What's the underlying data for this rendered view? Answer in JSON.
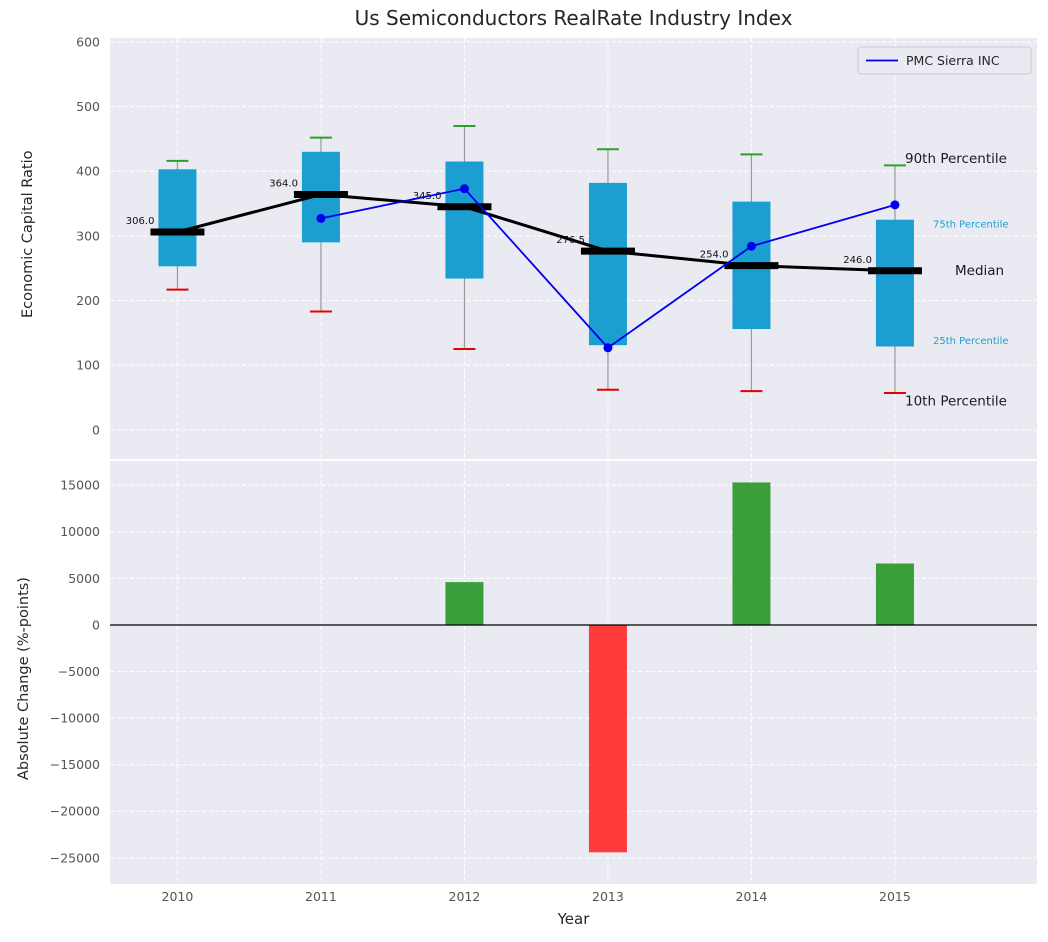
{
  "colors": {
    "axes_bg": "#eaeaf2",
    "grid": "#ffffff",
    "box_fill": "#1a9fd0",
    "median": "#000000",
    "whisker": "#999999",
    "cap_high": "#2ca02c",
    "cap_low": "#e60000",
    "series_line": "#0000ee",
    "bar_positive": "#3a9e3a",
    "bar_negative": "#ff3b3b",
    "tick_label": "#555555",
    "text": "#262626",
    "pct_small": "#1f9ecd"
  },
  "legend": {
    "items": [
      {
        "label": "PMC Sierra INC",
        "color": "#0000ee"
      }
    ]
  },
  "chart_data": [
    {
      "type": "boxplot",
      "title": "Us Semiconductors RealRate Industry Index",
      "ylabel": "Economic Capital Ratio",
      "ylim": [
        -45,
        606
      ],
      "yticks": [
        0,
        100,
        200,
        300,
        400,
        500,
        600
      ],
      "categories": [
        "2010",
        "2011",
        "2012",
        "2013",
        "2014",
        "2015"
      ],
      "boxes": [
        {
          "x": 2010,
          "p10": 217,
          "p25": 253,
          "median": 306.0,
          "p75": 403,
          "p90": 416,
          "label": "306.0"
        },
        {
          "x": 2011,
          "p10": 183,
          "p25": 290,
          "median": 364.0,
          "p75": 430,
          "p90": 452,
          "label": "364.0"
        },
        {
          "x": 2012,
          "p10": 125,
          "p25": 234,
          "median": 345.0,
          "p75": 415,
          "p90": 470,
          "label": "345.0"
        },
        {
          "x": 2013,
          "p10": 62,
          "p25": 131,
          "median": 276.5,
          "p75": 382,
          "p90": 434,
          "label": "276.5"
        },
        {
          "x": 2014,
          "p10": 60,
          "p25": 156,
          "median": 254.0,
          "p75": 353,
          "p90": 426,
          "label": "254.0"
        },
        {
          "x": 2015,
          "p10": 57,
          "p25": 129,
          "median": 246.0,
          "p75": 325,
          "p90": 409,
          "label": "246.0"
        }
      ],
      "series": [
        {
          "name": "PMC Sierra INC",
          "x": [
            2011,
            2012,
            2013,
            2014,
            2015
          ],
          "values": [
            327,
            373,
            127,
            284,
            348
          ]
        }
      ],
      "annotations": [
        {
          "text": "90th Percentile",
          "value": 420,
          "emphasis": "large"
        },
        {
          "text": "75th Percentile",
          "value": 318,
          "emphasis": "small"
        },
        {
          "text": "Median",
          "value": 247,
          "emphasis": "large_indent"
        },
        {
          "text": "25th Percentile",
          "value": 138,
          "emphasis": "small"
        },
        {
          "text": "10th Percentile",
          "value": 45,
          "emphasis": "large"
        }
      ]
    },
    {
      "type": "bar",
      "ylabel": "Absolute Change (%-points)",
      "xlabel": "Year",
      "ylim": [
        -27800,
        17600
      ],
      "yticks": [
        {
          "v": -25000,
          "label": "−25000"
        },
        {
          "v": -20000,
          "label": "−20000"
        },
        {
          "v": -15000,
          "label": "−15000"
        },
        {
          "v": -10000,
          "label": "−10000"
        },
        {
          "v": -5000,
          "label": "−5000"
        },
        {
          "v": 0,
          "label": "0"
        },
        {
          "v": 5000,
          "label": "5000"
        },
        {
          "v": 10000,
          "label": "10000"
        },
        {
          "v": 15000,
          "label": "15000"
        }
      ],
      "categories": [
        "2010",
        "2011",
        "2012",
        "2013",
        "2014",
        "2015"
      ],
      "values": [
        null,
        null,
        4600,
        -24400,
        15300,
        6600
      ]
    }
  ]
}
